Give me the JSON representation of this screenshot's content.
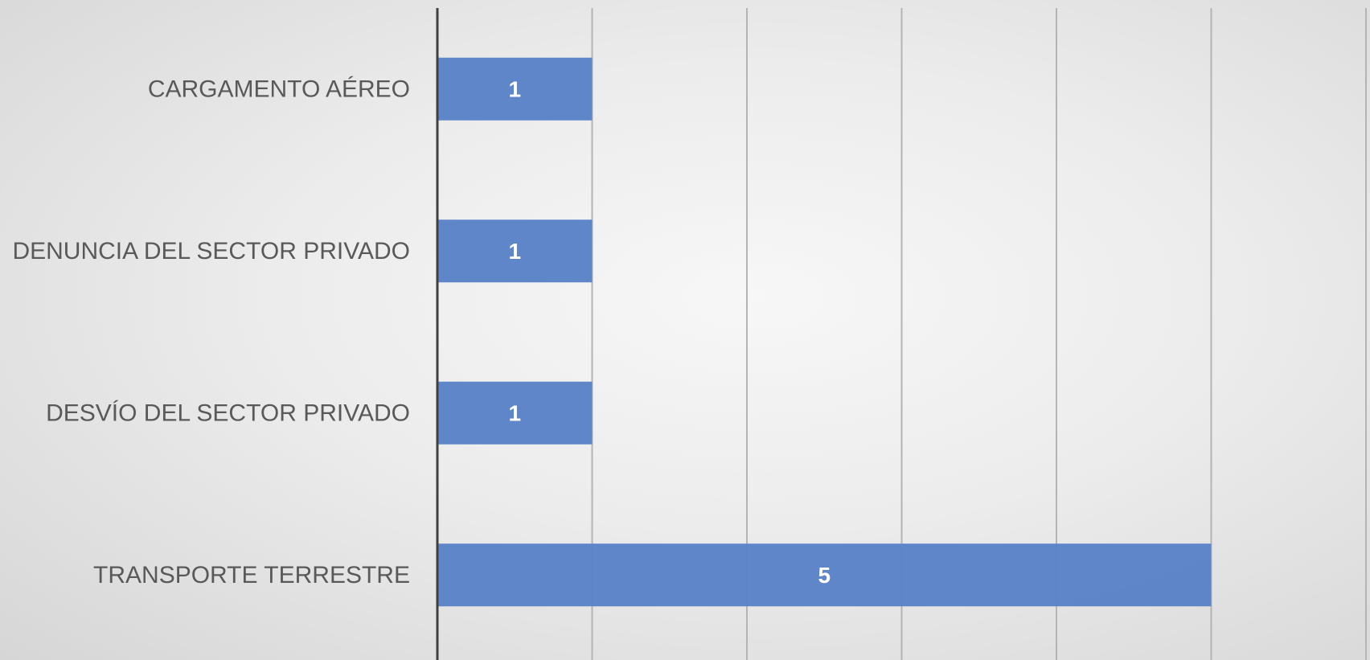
{
  "chart_data": {
    "type": "bar",
    "orientation": "horizontal",
    "categories": [
      "CARGAMENTO AÉREO",
      "DENUNCIA DEL SECTOR PRIVADO",
      "DESVÍO DEL SECTOR PRIVADO",
      "TRANSPORTE TERRESTRE"
    ],
    "values": [
      1,
      1,
      1,
      5
    ],
    "data_labels": [
      "1",
      "1",
      "1",
      "5"
    ],
    "title": "",
    "xlabel": "",
    "ylabel": "",
    "xlim": [
      0,
      6
    ],
    "grid": true,
    "legend": "none",
    "bar_color": "#5b82c8"
  }
}
